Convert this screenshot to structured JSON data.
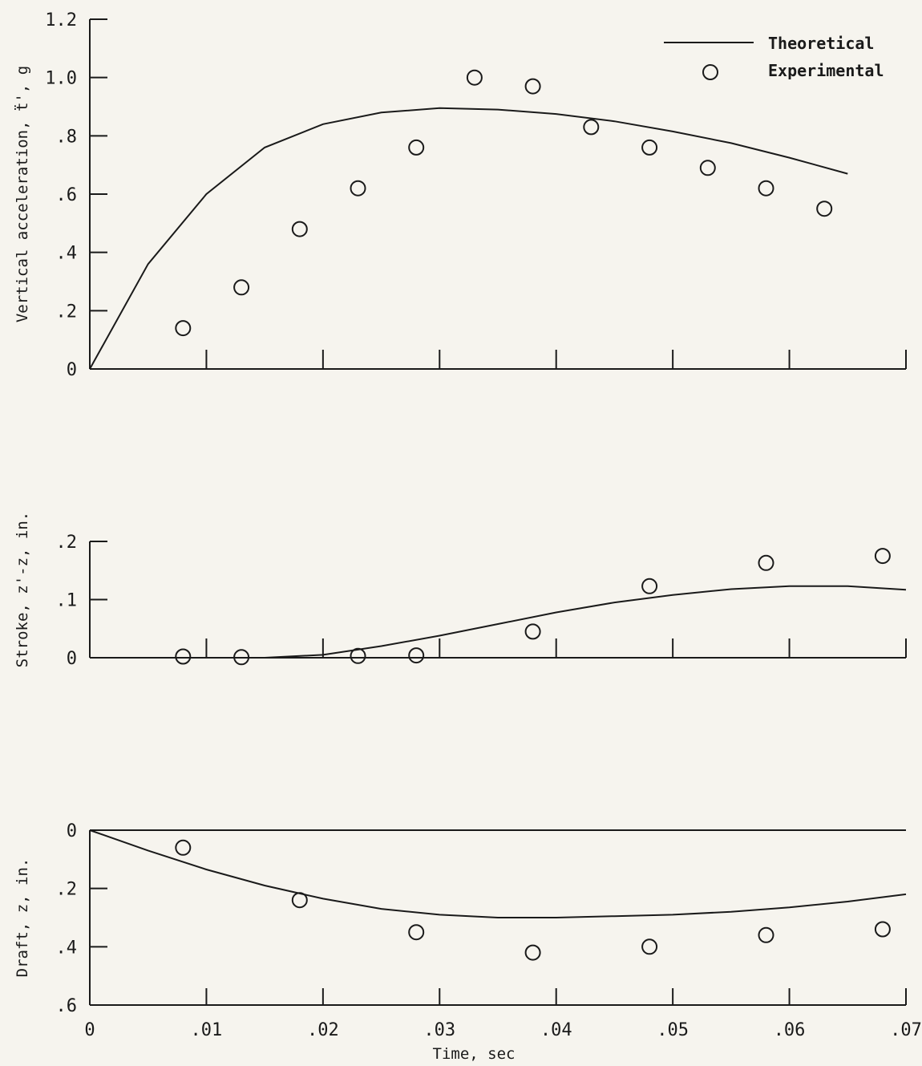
{
  "legend": {
    "theoretical": "Theoretical",
    "experimental": "Experimental"
  },
  "chart_data": [
    {
      "type": "line",
      "ylabel": "Vertical acceleration, ẗ', g",
      "xlim": [
        0,
        0.07
      ],
      "ylim": [
        0,
        1.2
      ],
      "y_ticks": [
        0,
        0.2,
        0.4,
        0.6,
        0.8,
        1.0,
        1.2
      ],
      "y_tick_labels": [
        "0",
        ".2",
        ".4",
        ".6",
        ".8",
        "1.0",
        "1.2"
      ],
      "series": [
        {
          "name": "Theoretical",
          "x": [
            0,
            0.005,
            0.01,
            0.015,
            0.02,
            0.025,
            0.03,
            0.035,
            0.04,
            0.045,
            0.05,
            0.055,
            0.06,
            0.065
          ],
          "y": [
            0,
            0.36,
            0.6,
            0.76,
            0.84,
            0.88,
            0.895,
            0.89,
            0.875,
            0.85,
            0.815,
            0.775,
            0.725,
            0.67
          ]
        },
        {
          "name": "Experimental",
          "x": [
            0.008,
            0.013,
            0.018,
            0.023,
            0.028,
            0.033,
            0.038,
            0.043,
            0.048,
            0.053,
            0.058,
            0.063
          ],
          "y": [
            0.14,
            0.28,
            0.48,
            0.62,
            0.76,
            1.0,
            0.97,
            0.83,
            0.76,
            0.69,
            0.62,
            0.55
          ]
        }
      ]
    },
    {
      "type": "line",
      "ylabel": "Stroke, z'-z, in.",
      "xlim": [
        0,
        0.07
      ],
      "ylim": [
        0,
        0.2
      ],
      "y_ticks": [
        0,
        0.1,
        0.2
      ],
      "y_tick_labels": [
        "0",
        ".1",
        ".2"
      ],
      "series": [
        {
          "name": "Theoretical",
          "x": [
            0,
            0.01,
            0.015,
            0.02,
            0.025,
            0.03,
            0.035,
            0.04,
            0.045,
            0.05,
            0.055,
            0.06,
            0.065,
            0.07
          ],
          "y": [
            0,
            0,
            0.0,
            0.005,
            0.02,
            0.038,
            0.058,
            0.078,
            0.095,
            0.108,
            0.118,
            0.123,
            0.123,
            0.117
          ]
        },
        {
          "name": "Experimental",
          "x": [
            0.008,
            0.013,
            0.023,
            0.028,
            0.038,
            0.048,
            0.058,
            0.068
          ],
          "y": [
            0.002,
            0.001,
            0.003,
            0.004,
            0.045,
            0.123,
            0.163,
            0.175
          ]
        }
      ]
    },
    {
      "type": "line",
      "ylabel": "Draft, z, in.",
      "xlabel": "Time, sec",
      "xlim": [
        0,
        0.07
      ],
      "ylim": [
        0.6,
        0
      ],
      "y_ticks": [
        0,
        0.2,
        0.4,
        0.6
      ],
      "y_tick_labels": [
        "0",
        ".2",
        ".4",
        ".6"
      ],
      "x_ticks": [
        0,
        0.01,
        0.02,
        0.03,
        0.04,
        0.05,
        0.06,
        0.07
      ],
      "x_tick_labels": [
        "0",
        ".01",
        ".02",
        ".03",
        ".04",
        ".05",
        ".06",
        ".07"
      ],
      "series": [
        {
          "name": "Theoretical",
          "x": [
            0,
            0.005,
            0.01,
            0.015,
            0.02,
            0.025,
            0.03,
            0.035,
            0.04,
            0.045,
            0.05,
            0.055,
            0.06,
            0.065,
            0.07
          ],
          "y": [
            0,
            0.07,
            0.135,
            0.19,
            0.235,
            0.27,
            0.29,
            0.3,
            0.3,
            0.295,
            0.29,
            0.28,
            0.265,
            0.245,
            0.22
          ]
        },
        {
          "name": "Experimental",
          "x": [
            0.008,
            0.018,
            0.028,
            0.038,
            0.048,
            0.058,
            0.068
          ],
          "y": [
            0.06,
            0.24,
            0.35,
            0.42,
            0.4,
            0.36,
            0.34
          ]
        }
      ]
    }
  ]
}
